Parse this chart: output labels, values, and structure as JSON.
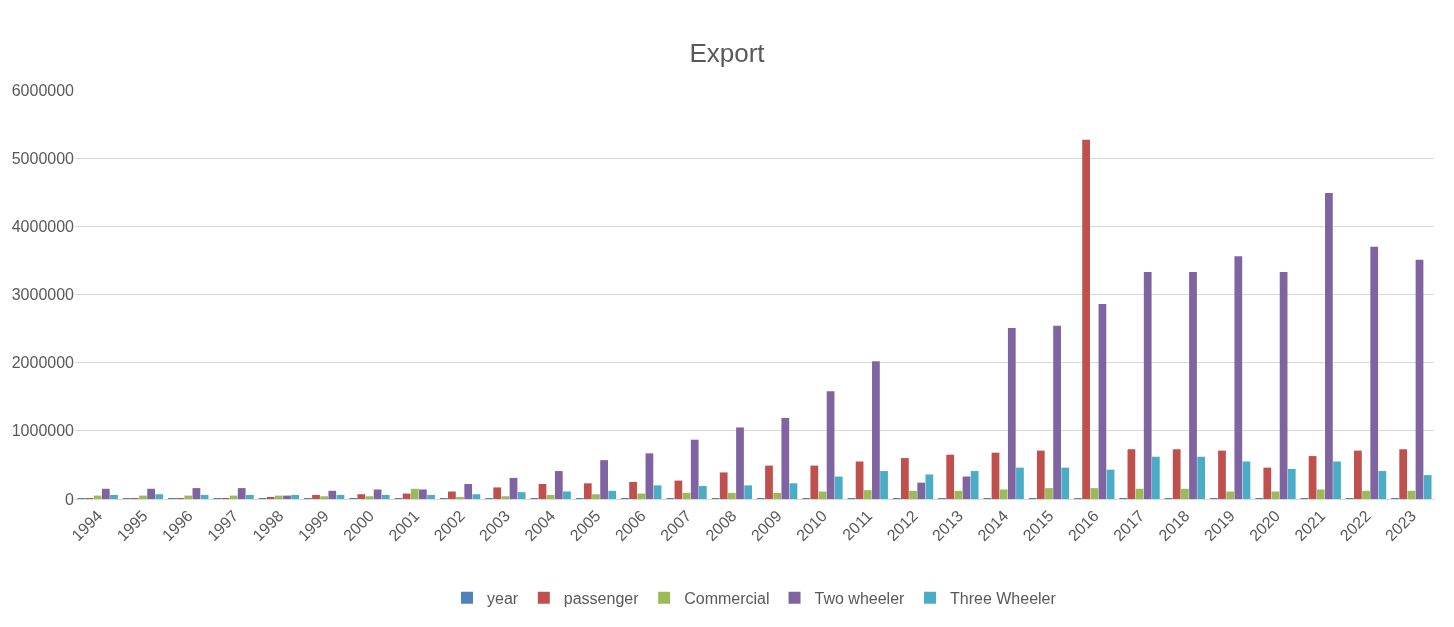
{
  "chart_data": {
    "type": "bar",
    "title": "Export",
    "categories": [
      "1994",
      "1995",
      "1996",
      "1997",
      "1998",
      "1999",
      "2000",
      "2001",
      "2002",
      "2003",
      "2004",
      "2005",
      "2006",
      "2007",
      "2008",
      "2009",
      "2010",
      "2011",
      "2012",
      "2013",
      "2014",
      "2015",
      "2016",
      "2017",
      "2018",
      "2019",
      "2020",
      "2021",
      "2022",
      "2023"
    ],
    "series": [
      {
        "name": "year",
        "color": "#4f81bd",
        "values": [
          1994,
          1995,
          1996,
          1997,
          1998,
          1999,
          2000,
          2001,
          2002,
          2003,
          2004,
          2005,
          2006,
          2007,
          2008,
          2009,
          2010,
          2011,
          2012,
          2013,
          2014,
          2015,
          2016,
          2017,
          2018,
          2019,
          2020,
          2021,
          2022,
          2023
        ]
      },
      {
        "name": "passenger",
        "color": "#c0504d",
        "values": [
          10000,
          10000,
          10000,
          10000,
          30000,
          60000,
          70000,
          80000,
          110000,
          170000,
          220000,
          230000,
          250000,
          270000,
          390000,
          490000,
          490000,
          550000,
          600000,
          650000,
          680000,
          710000,
          5270000,
          730000,
          730000,
          710000,
          460000,
          630000,
          710000,
          730000
        ]
      },
      {
        "name": "Commercial",
        "color": "#9bbb59",
        "values": [
          50000,
          50000,
          50000,
          50000,
          50000,
          40000,
          40000,
          150000,
          30000,
          40000,
          60000,
          70000,
          80000,
          90000,
          90000,
          90000,
          110000,
          130000,
          120000,
          120000,
          140000,
          160000,
          160000,
          150000,
          150000,
          110000,
          110000,
          140000,
          120000,
          120000
        ]
      },
      {
        "name": "Two wheeler",
        "color": "#8064a2",
        "values": [
          150000,
          150000,
          160000,
          160000,
          50000,
          120000,
          140000,
          140000,
          220000,
          310000,
          410000,
          570000,
          670000,
          870000,
          1050000,
          1190000,
          1580000,
          2020000,
          240000,
          330000,
          2510000,
          2540000,
          2860000,
          3330000,
          3330000,
          3560000,
          3330000,
          4490000,
          3700000,
          3510000
        ]
      },
      {
        "name": "Three Wheeler",
        "color": "#4bacc6",
        "values": [
          60000,
          70000,
          60000,
          60000,
          60000,
          60000,
          60000,
          60000,
          70000,
          100000,
          110000,
          120000,
          200000,
          190000,
          200000,
          230000,
          330000,
          410000,
          360000,
          410000,
          460000,
          460000,
          430000,
          620000,
          620000,
          550000,
          440000,
          550000,
          410000,
          350000
        ]
      }
    ],
    "ylim": [
      0,
      6000000
    ],
    "yticks": [
      0,
      1000000,
      2000000,
      3000000,
      4000000,
      5000000,
      6000000
    ],
    "grid": "y",
    "legend": "bottom"
  }
}
